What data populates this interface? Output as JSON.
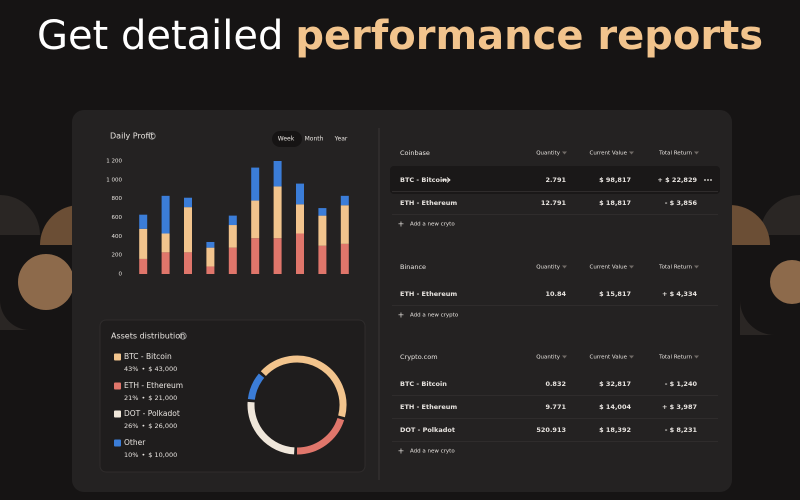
{
  "headline": {
    "text": "Get detailed",
    "highlight": "performance reports"
  },
  "chart_data": {
    "type": "bar",
    "stacked": true,
    "title": "Daily Profit",
    "tabs": [
      "Week",
      "Month",
      "Year"
    ],
    "categories": [
      null,
      null,
      null,
      null,
      null,
      null,
      null,
      null,
      null,
      null
    ],
    "ylim": [
      0,
      1200
    ],
    "yticks": [
      0,
      200,
      400,
      600,
      800,
      {
        "value": 1000,
        "label": "1 000"
      },
      {
        "value": 1200,
        "label": "1 200"
      }
    ],
    "series": [
      {
        "color": "#e0766b",
        "values": [
          160,
          230,
          230,
          80,
          280,
          380,
          380,
          430,
          300,
          320
        ]
      },
      {
        "color": "#f2c48d",
        "values": [
          320,
          200,
          480,
          200,
          240,
          400,
          550,
          310,
          320,
          410
        ]
      },
      {
        "color": "#3b7dd8",
        "values": [
          150,
          400,
          100,
          60,
          100,
          350,
          270,
          220,
          80,
          100
        ]
      }
    ]
  },
  "assets": {
    "title": "Assets distribution",
    "items": [
      {
        "name": "BTC - Bitcoin",
        "color": "#f2c48d",
        "value": 43,
        "value_label": "43%",
        "separator": "•",
        "amount": "$ 43,000"
      },
      {
        "name": "ETH - Ethereum",
        "color": "#e0766b",
        "value": 21,
        "value_label": "21%",
        "separator": "•",
        "amount": "$ 21,000"
      },
      {
        "name": "DOT - Polkadot",
        "color": "#efe6da",
        "value": 26,
        "value_label": "26%",
        "separator": "•",
        "amount": "$ 26,000"
      },
      {
        "name": "Other",
        "color": "#3b7dd8",
        "value": 10,
        "value_label": "10%",
        "separator": "•",
        "amount": "$ 10,000"
      }
    ]
  },
  "portfolios": [
    {
      "exchange": "Coinbase",
      "columns": [
        "Quantity",
        "Current Value",
        "Total Return"
      ],
      "rows": [
        [
          "BTC - Bitcoin",
          "2.791",
          "$ 98,817",
          "+ $ 22,829"
        ],
        [
          "ETH - Ethereum",
          "12.791",
          "$ 18,817",
          "- $ 3,856"
        ]
      ],
      "add_label": "Add a new cryto"
    },
    {
      "exchange": "Binance",
      "columns": [
        "Quantity",
        "Current Value",
        "Total Return"
      ],
      "rows": [
        [
          "ETH - Ethereum",
          "10.84",
          "$ 15,817",
          "+ $ 4,334"
        ]
      ],
      "add_label": "Add a new crypto"
    },
    {
      "exchange": "Crypto.com",
      "columns": [
        "Quantity",
        "Current Value",
        "Total Return"
      ],
      "rows": [
        [
          "BTC - Bitcoin",
          "0.832",
          "$ 32,817",
          "- $ 1,240"
        ],
        [
          "ETH - Ethereum",
          "9.771",
          "$ 14,004",
          "+ $ 3,987"
        ],
        [
          "DOT - Polkadot",
          "520.913",
          "$ 18,392",
          "- $ 8,231"
        ]
      ],
      "add_label": "Add a new cryto"
    }
  ]
}
